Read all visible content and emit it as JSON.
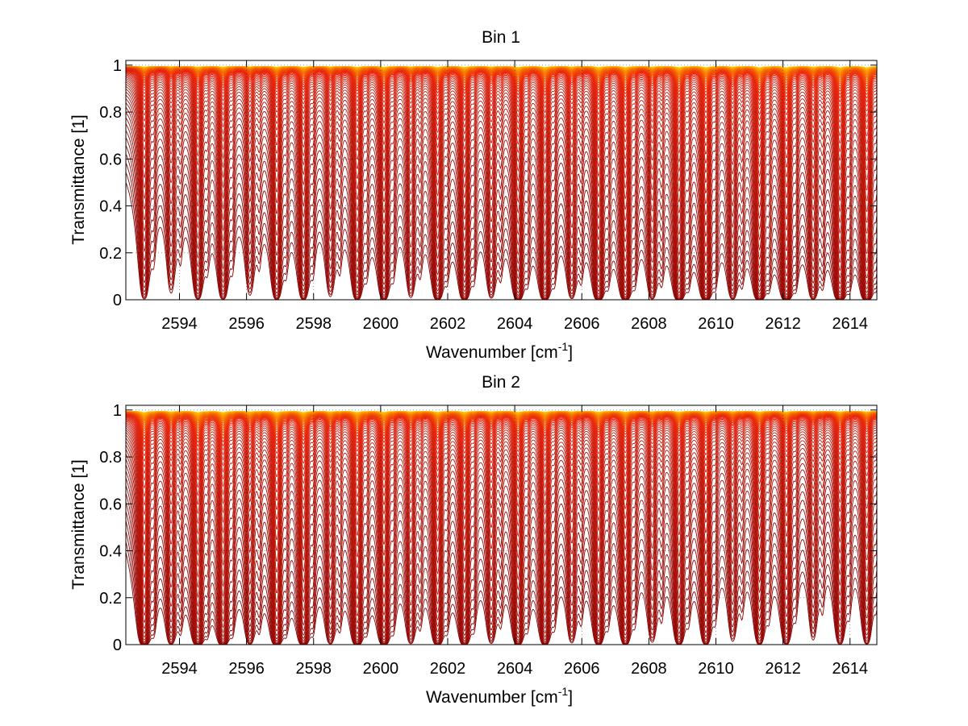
{
  "chart_data": [
    {
      "type": "line",
      "title": "Bin 1",
      "xlabel": "Wavenumber [cm",
      "xlabel_sup": "-1",
      "xlabel_end": "]",
      "ylabel": "Transmittance [1]",
      "xlim": [
        2592.4,
        2614.8
      ],
      "ylim": [
        0,
        1.02
      ],
      "xticks": [
        2594,
        2596,
        2598,
        2600,
        2602,
        2604,
        2606,
        2608,
        2610,
        2612,
        2614
      ],
      "yticks": [
        0,
        0.2,
        0.4,
        0.6,
        0.8,
        1
      ],
      "ytick_labels": [
        "0",
        "0.2",
        "0.4",
        "0.6",
        "0.8",
        "1"
      ],
      "grid": "dotted",
      "series_count": 60,
      "series_description": "family of transmittance spectra, colormap dark red (low) to orange/yellow (near 1)",
      "line_centers": [
        2592.95,
        2593.75,
        2594.55,
        2595.3,
        2596.1,
        2596.9,
        2597.7,
        2598.5,
        2599.3,
        2600.1,
        2600.9,
        2601.7,
        2602.5,
        2603.3,
        2604.1,
        2604.9,
        2605.7,
        2606.5,
        2607.3,
        2608.1,
        2608.9,
        2609.7,
        2610.5,
        2611.3,
        2612.1,
        2612.9,
        2613.7,
        2614.5
      ],
      "band_envelope": "stronger absorption at high wavenumber",
      "colors": {
        "low": "#8b0000",
        "mid": "#e8200a",
        "high": "#ffa500",
        "top": "#ffd700"
      }
    },
    {
      "type": "line",
      "title": "Bin 2",
      "xlabel": "Wavenumber [cm",
      "xlabel_sup": "-1",
      "xlabel_end": "]",
      "ylabel": "Transmittance [1]",
      "xlim": [
        2592.4,
        2614.8
      ],
      "ylim": [
        0,
        1.02
      ],
      "xticks": [
        2594,
        2596,
        2598,
        2600,
        2602,
        2604,
        2606,
        2608,
        2610,
        2612,
        2614
      ],
      "yticks": [
        0,
        0.2,
        0.4,
        0.6,
        0.8,
        1
      ],
      "ytick_labels": [
        "0",
        "0.2",
        "0.4",
        "0.6",
        "0.8",
        "1"
      ],
      "grid": "dotted",
      "series_count": 60,
      "series_description": "family of transmittance spectra, colormap dark red (low) to orange/yellow (near 1)",
      "line_centers": [
        2592.95,
        2593.75,
        2594.55,
        2595.3,
        2596.1,
        2596.9,
        2597.7,
        2598.5,
        2599.3,
        2600.1,
        2600.9,
        2601.7,
        2602.5,
        2603.3,
        2604.1,
        2604.9,
        2605.7,
        2606.5,
        2607.3,
        2608.1,
        2608.9,
        2609.7,
        2610.5,
        2611.3,
        2612.1,
        2612.9,
        2613.7,
        2614.5
      ],
      "band_envelope": "stronger absorption at low wavenumber",
      "colors": {
        "low": "#8b0000",
        "mid": "#e8200a",
        "high": "#ffa500",
        "top": "#ffd700"
      }
    }
  ]
}
